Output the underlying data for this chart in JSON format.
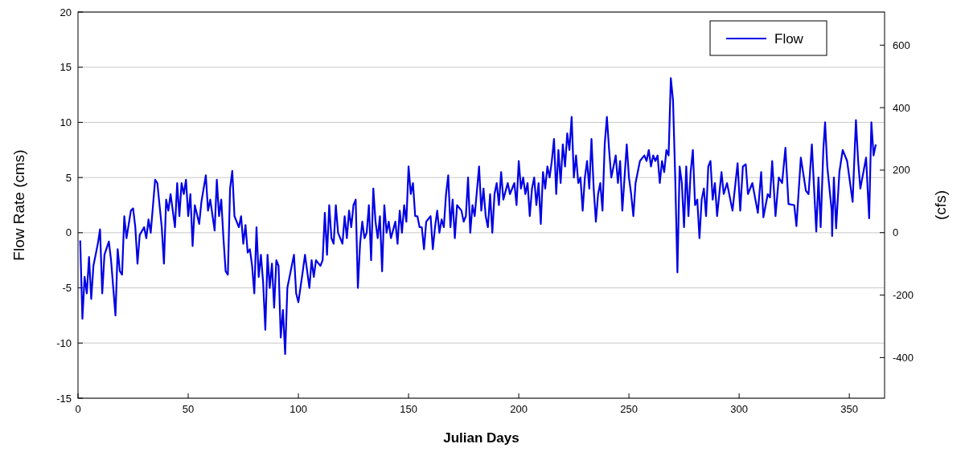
{
  "chart_data": {
    "type": "line",
    "xlabel": "Julian Days",
    "ylabel": "Flow Rate (cms)",
    "y2label": "(cfs)",
    "xlim": [
      0,
      366
    ],
    "xticks": [
      0,
      50,
      100,
      150,
      200,
      250,
      300,
      350
    ],
    "ylim": [
      -15,
      20
    ],
    "yticks": [
      -15,
      -10,
      -5,
      0,
      5,
      10,
      15,
      20
    ],
    "y2lim": [
      -530,
      706
    ],
    "y2ticks": [
      -400,
      -200,
      0,
      200,
      400,
      600
    ],
    "grid": "y",
    "legend": "top right",
    "line_style": "solid",
    "marker": "none",
    "series": [
      {
        "name": "Flow",
        "color": "#0000e6",
        "x": [
          1,
          2,
          3,
          4,
          5,
          6,
          7,
          9,
          10,
          11,
          12,
          14,
          15,
          16,
          17,
          18,
          19,
          20,
          21,
          22,
          24,
          25,
          26,
          27,
          28,
          30,
          31,
          32,
          33,
          35,
          36,
          38,
          39,
          40,
          41,
          42,
          44,
          45,
          46,
          47,
          48,
          49,
          50,
          51,
          52,
          53,
          55,
          56,
          58,
          59,
          60,
          62,
          63,
          64,
          65,
          66,
          67,
          68,
          69,
          70,
          71,
          72,
          73,
          74,
          75,
          76,
          77,
          78,
          79,
          80,
          81,
          82,
          83,
          84,
          85,
          86,
          87,
          88,
          89,
          90,
          91,
          92,
          93,
          94,
          95,
          97,
          98,
          99,
          100,
          102,
          103,
          104,
          105,
          106,
          107,
          108,
          110,
          111,
          112,
          113,
          114,
          115,
          116,
          117,
          118,
          120,
          121,
          122,
          123,
          124,
          125,
          126,
          127,
          128,
          129,
          130,
          131,
          132,
          133,
          134,
          135,
          136,
          137,
          138,
          139,
          140,
          141,
          142,
          144,
          145,
          146,
          147,
          148,
          149,
          150,
          151,
          152,
          153,
          154,
          155,
          156,
          157,
          158,
          160,
          161,
          162,
          163,
          164,
          165,
          166,
          167,
          168,
          169,
          170,
          171,
          172,
          174,
          175,
          176,
          177,
          178,
          179,
          180,
          182,
          183,
          184,
          185,
          186,
          187,
          188,
          189,
          190,
          191,
          192,
          193,
          195,
          196,
          198,
          199,
          200,
          201,
          202,
          203,
          204,
          205,
          206,
          207,
          208,
          209,
          210,
          211,
          212,
          213,
          214,
          215,
          216,
          217,
          218,
          219,
          220,
          221,
          222,
          223,
          224,
          225,
          226,
          227,
          228,
          229,
          230,
          231,
          232,
          233,
          234,
          235,
          236,
          237,
          238,
          239,
          240,
          241,
          242,
          244,
          245,
          246,
          247,
          248,
          249,
          250,
          251,
          252,
          253,
          254,
          255,
          257,
          258,
          259,
          260,
          261,
          262,
          263,
          264,
          265,
          266,
          267,
          268,
          269,
          270,
          271,
          272,
          273,
          274,
          275,
          276,
          277,
          278,
          279,
          280,
          281,
          282,
          283,
          284,
          285,
          286,
          287,
          288,
          289,
          290,
          291,
          292,
          293,
          294.5,
          297,
          299.3,
          300.5,
          301.7,
          303,
          304,
          306,
          308.5,
          310,
          311,
          313,
          314,
          315,
          316.5,
          318,
          319.5,
          321,
          322.4,
          325,
          326,
          328,
          330.3,
          331.5,
          333,
          335,
          336,
          337,
          338.2,
          339,
          340,
          342,
          342.2,
          343,
          344,
          345.5,
          347,
          349,
          351.5,
          353,
          354,
          355,
          357.6,
          359,
          360,
          361,
          362
        ],
        "values": [
          -0.7,
          -7.8,
          -4,
          -5.5,
          -2.2,
          -6,
          -3,
          -1,
          0.3,
          -5.5,
          -2,
          -0.8,
          -2.5,
          -5,
          -7.5,
          -1.5,
          -3.5,
          -3.8,
          1.5,
          -0.5,
          2,
          2.2,
          0.5,
          -2.8,
          -0.2,
          0.5,
          -0.5,
          1.2,
          0,
          4.8,
          4.5,
          0.5,
          -2.8,
          3,
          2,
          3.5,
          0.5,
          4.5,
          1.5,
          4.5,
          3.5,
          4.8,
          1.5,
          3.5,
          -1.2,
          2.5,
          0.8,
          2.8,
          5.2,
          2,
          3,
          0.2,
          4.8,
          1.5,
          3,
          -0.5,
          -3.5,
          -3.8,
          4,
          5.6,
          1.5,
          1,
          0.5,
          1.5,
          -1,
          0.7,
          -1.8,
          -1.5,
          -3,
          -5.5,
          0.5,
          -4,
          -2,
          -4.5,
          -8.8,
          -2,
          -5,
          -2.8,
          -6.8,
          -2.5,
          -3,
          -9.5,
          -7,
          -11,
          -5,
          -3,
          -2,
          -5.5,
          -6.3,
          -3.5,
          -2,
          -3.5,
          -5,
          -2.5,
          -4,
          -2.5,
          -3,
          -2.5,
          1.8,
          -2,
          2.5,
          -0.5,
          -1,
          2.5,
          0,
          -1,
          1.5,
          -0.5,
          2,
          0.5,
          2.5,
          3,
          -5,
          -1,
          1,
          -0.5,
          0,
          2.5,
          -2.5,
          4,
          1,
          -0.5,
          1.5,
          -3.5,
          2.5,
          0,
          1,
          -0.5,
          1,
          -1,
          2,
          0,
          2.5,
          1,
          6,
          3.5,
          4.5,
          1.5,
          1.5,
          0.5,
          0.5,
          -1.5,
          1,
          1.5,
          -1.5,
          0.5,
          2,
          0,
          1.2,
          0.5,
          3.5,
          5.2,
          0.5,
          3,
          -0.5,
          2.5,
          2,
          1,
          1.5,
          5,
          0,
          2.5,
          1.5,
          6,
          2,
          4,
          1.5,
          0.5,
          3.5,
          0,
          3.5,
          4.5,
          2.5,
          5.5,
          3,
          4.5,
          3.5,
          4.5,
          2.5,
          6.5,
          4,
          5,
          3.5,
          4.5,
          1.5,
          4,
          5,
          2.5,
          4.5,
          0.8,
          5.5,
          4,
          6,
          5,
          6.5,
          8.5,
          3.5,
          7.5,
          4.5,
          8,
          6,
          9,
          7.5,
          10.5,
          5,
          7,
          4.5,
          5,
          2,
          5,
          6.5,
          4,
          8.5,
          4,
          1,
          3.5,
          4.5,
          2,
          8,
          10.5,
          7.5,
          5,
          7,
          4.5,
          6.5,
          2,
          5,
          8,
          5,
          3.5,
          1.5,
          4.5,
          5.5,
          6.5,
          7,
          6.5,
          7.5,
          6,
          7,
          6.5,
          7,
          4.5,
          6.5,
          5.5,
          7.5,
          7,
          14,
          12,
          5,
          -3.6,
          6,
          4.5,
          0.5,
          6,
          1.5,
          5.5,
          7.5,
          2.5,
          3,
          -0.5,
          3,
          4,
          1.5,
          6,
          6.5,
          3,
          4.5,
          1.5,
          3.5,
          5.5,
          3.5,
          4.5,
          2,
          6.3,
          2,
          6,
          6.2,
          3.5,
          4.5,
          1.8,
          5.5,
          1.4,
          3.5,
          3.2,
          6.5,
          1.5,
          5,
          4.5,
          7.7,
          2.6,
          2.5,
          0.6,
          6.8,
          3.8,
          3.5,
          8,
          0.1,
          5,
          0.5,
          7.5,
          10,
          6,
          2,
          -0.3,
          5,
          0.4,
          5.5,
          7.5,
          6.5,
          2.8,
          10.2,
          6.5,
          4,
          6.8,
          1.3,
          10,
          7,
          8
        ]
      }
    ]
  }
}
